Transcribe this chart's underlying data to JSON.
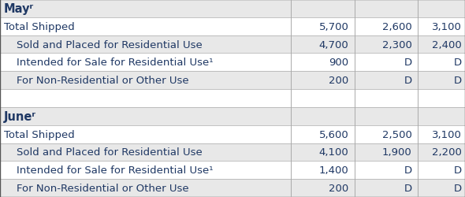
{
  "rows": [
    {
      "label": "Mayʳ",
      "indent": 0,
      "col1": "",
      "col2": "",
      "col3": "",
      "type": "header",
      "bg": "#e8e8e8"
    },
    {
      "label": "Total Shipped",
      "indent": 0,
      "col1": "5,700",
      "col2": "2,600",
      "col3": "3,100",
      "type": "data",
      "bg": "#ffffff"
    },
    {
      "label": "Sold and Placed for Residential Use",
      "indent": 1,
      "col1": "4,700",
      "col2": "2,300",
      "col3": "2,400",
      "type": "data",
      "bg": "#e8e8e8"
    },
    {
      "label": "Intended for Sale for Residential Use¹",
      "indent": 1,
      "col1": "900",
      "col2": "D",
      "col3": "D",
      "type": "data",
      "bg": "#ffffff"
    },
    {
      "label": "For Non-Residential or Other Use",
      "indent": 1,
      "col1": "200",
      "col2": "D",
      "col3": "D",
      "type": "data",
      "bg": "#e8e8e8"
    },
    {
      "label": "",
      "indent": 0,
      "col1": "",
      "col2": "",
      "col3": "",
      "type": "spacer",
      "bg": "#ffffff"
    },
    {
      "label": "Juneʳ",
      "indent": 0,
      "col1": "",
      "col2": "",
      "col3": "",
      "type": "header",
      "bg": "#e8e8e8"
    },
    {
      "label": "Total Shipped",
      "indent": 0,
      "col1": "5,600",
      "col2": "2,500",
      "col3": "3,100",
      "type": "data",
      "bg": "#ffffff"
    },
    {
      "label": "Sold and Placed for Residential Use",
      "indent": 1,
      "col1": "4,100",
      "col2": "1,900",
      "col3": "2,200",
      "type": "data",
      "bg": "#e8e8e8"
    },
    {
      "label": "Intended for Sale for Residential Use¹",
      "indent": 1,
      "col1": "1,400",
      "col2": "D",
      "col3": "D",
      "type": "data",
      "bg": "#ffffff"
    },
    {
      "label": "For Non-Residential or Other Use",
      "indent": 1,
      "col1": "200",
      "col2": "D",
      "col3": "D",
      "type": "data",
      "bg": "#e8e8e8"
    }
  ],
  "col_div1": 0.625,
  "col_div2": 0.762,
  "col_div3": 0.898,
  "text_color": "#1f3864",
  "border_color": "#aaaaaa",
  "font_size": 9.5,
  "header_font_size": 10.5
}
